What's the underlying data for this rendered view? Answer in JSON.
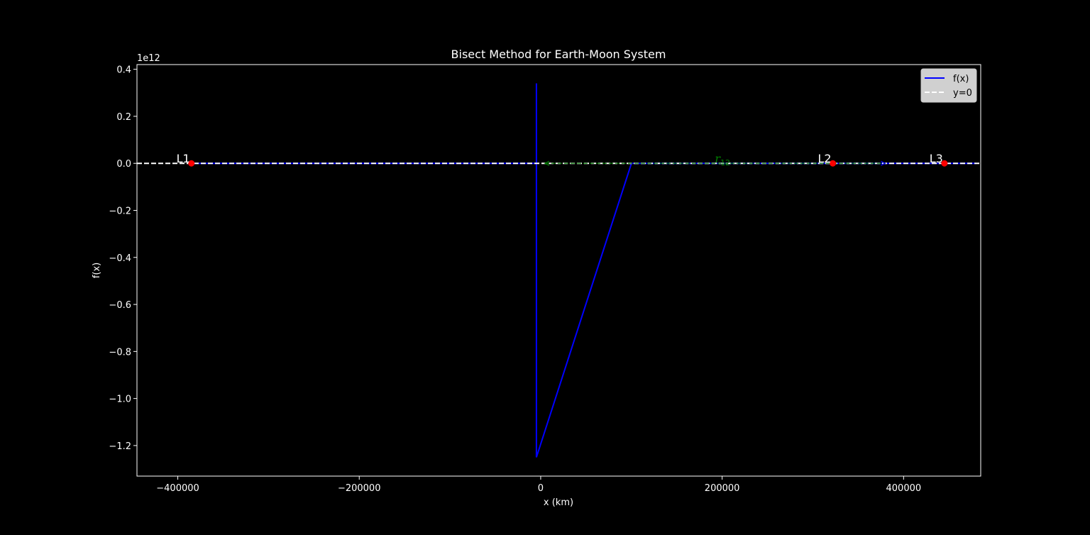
{
  "chart_data": {
    "type": "line",
    "title": "Bisect Method for Earth-Moon System",
    "xlabel": "x (km)",
    "ylabel": "f(x)",
    "y_offset_label": "1e12",
    "xlim": [
      -445000,
      485000
    ],
    "ylim": [
      -1.33,
      0.42
    ],
    "x_ticks": [
      -400000,
      -200000,
      0,
      200000,
      400000
    ],
    "x_tick_labels": [
      "−400000",
      "−200000",
      "0",
      "200000",
      "400000"
    ],
    "y_ticks": [
      0.4,
      0.2,
      0.0,
      -0.2,
      -0.4,
      -0.6,
      -0.8,
      -1.0,
      -1.2
    ],
    "y_tick_labels": [
      "0.4",
      "0.2",
      "0.0",
      "−0.2",
      "−0.4",
      "−0.6",
      "−0.8",
      "−1.0",
      "−1.2"
    ],
    "grid": false,
    "legend_position": "top-right",
    "series": [
      {
        "name": "f(x)",
        "color": "#0000ff",
        "style": "solid",
        "x": [
          -385000,
          -300000,
          -200000,
          -100000,
          -4700,
          -4700,
          -4700,
          100000,
          200000,
          300000,
          384400,
          450000,
          480000
        ],
        "y": [
          0.0,
          0.0,
          0.0,
          0.0,
          0.0,
          0.34,
          -1.25,
          0.0,
          0.0,
          0.0,
          0.0,
          0.0,
          0.0
        ]
      },
      {
        "name": "y=0",
        "color": "#ffffff",
        "style": "dashed",
        "x": [
          -445000,
          485000
        ],
        "y": [
          0.0,
          0.0
        ]
      }
    ],
    "points": [
      {
        "label": "L1",
        "x": -385000,
        "y": 0.0,
        "color": "#ff0000"
      },
      {
        "label": "L2",
        "x": 322000,
        "y": 0.0,
        "color": "#ff0000"
      },
      {
        "label": "L3",
        "x": 445000,
        "y": 0.0,
        "color": "#ff0000"
      }
    ],
    "annotation": {
      "label_main": "r",
      "label_sub": "12",
      "x_start": 0,
      "x_end": 384400,
      "y": 0.0,
      "label_x": 192000,
      "color": "#008000",
      "arrow_color": "#0000ff"
    }
  }
}
